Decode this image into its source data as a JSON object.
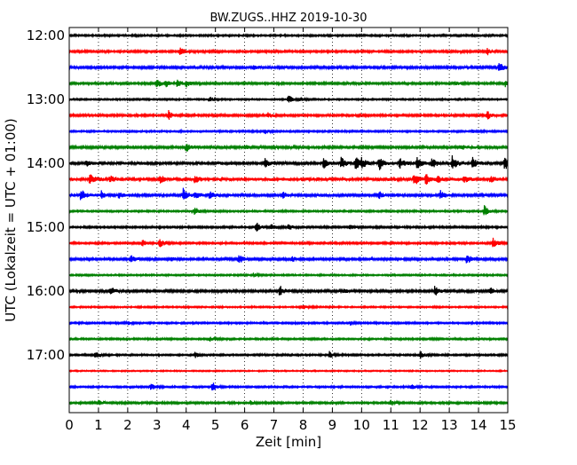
{
  "chart_data": {
    "type": "line",
    "title": "BW.ZUGS..HHZ 2019-10-30",
    "xlabel": "Zeit  [min]",
    "ylabel": "UTC (Lokalzeit = UTC + 01:00)",
    "xlim": [
      0,
      15
    ],
    "x_ticks": [
      "0",
      "1",
      "2",
      "3",
      "4",
      "5",
      "6",
      "7",
      "8",
      "9",
      "10",
      "11",
      "12",
      "13",
      "14",
      "15"
    ],
    "y_ticks": [
      "12:00",
      "13:00",
      "14:00",
      "15:00",
      "16:00",
      "17:00"
    ],
    "grid": "vertical-dotted",
    "trace_interval_minutes": 15,
    "trace_colors": [
      "#000000",
      "#ff0000",
      "#0000ff",
      "#008000"
    ],
    "series": [
      {
        "start": "12:00",
        "amplitude": 0.1,
        "events": []
      },
      {
        "start": "12:15",
        "amplitude": 0.12,
        "events": [
          [
            3.8,
            0.55
          ],
          [
            14.3,
            0.45
          ]
        ]
      },
      {
        "start": "12:30",
        "amplitude": 0.14,
        "events": [
          [
            14.7,
            0.7
          ],
          [
            6.3,
            0.25
          ]
        ]
      },
      {
        "start": "12:45",
        "amplitude": 0.12,
        "events": [
          [
            3.0,
            0.55
          ],
          [
            3.3,
            0.5
          ],
          [
            3.7,
            0.55
          ],
          [
            4.0,
            0.4
          ],
          [
            13.2,
            0.3
          ],
          [
            14.9,
            0.4
          ]
        ]
      },
      {
        "start": "13:00",
        "amplitude": 0.09,
        "events": [
          [
            7.5,
            0.55
          ],
          [
            7.9,
            0.3
          ],
          [
            4.8,
            0.3
          ]
        ]
      },
      {
        "start": "13:15",
        "amplitude": 0.12,
        "events": [
          [
            3.4,
            0.55
          ],
          [
            14.3,
            0.5
          ],
          [
            6.8,
            0.3
          ]
        ]
      },
      {
        "start": "13:30",
        "amplitude": 0.1,
        "events": [
          [
            6.7,
            0.25
          ],
          [
            13.8,
            0.3
          ]
        ]
      },
      {
        "start": "13:45",
        "amplitude": 0.14,
        "events": [
          [
            4.0,
            0.55
          ],
          [
            6.0,
            0.3
          ],
          [
            13.4,
            0.3
          ]
        ]
      },
      {
        "start": "14:00",
        "amplitude": 0.16,
        "events": [
          [
            6.7,
            0.55
          ],
          [
            8.7,
            0.6
          ],
          [
            9.3,
            0.7
          ],
          [
            9.8,
            0.85
          ],
          [
            10.6,
            0.9
          ],
          [
            11.3,
            0.7
          ],
          [
            11.9,
            0.75
          ],
          [
            12.4,
            0.6
          ],
          [
            13.1,
            0.9
          ],
          [
            13.8,
            0.7
          ],
          [
            14.9,
            1.0
          ],
          [
            0.6,
            0.4
          ],
          [
            10.0,
            0.6
          ]
        ]
      },
      {
        "start": "14:15",
        "amplitude": 0.18,
        "events": [
          [
            0.7,
            0.6
          ],
          [
            1.4,
            0.4
          ],
          [
            3.1,
            0.5
          ],
          [
            4.3,
            0.45
          ],
          [
            11.8,
            0.8
          ],
          [
            12.2,
            0.6
          ],
          [
            12.6,
            0.4
          ],
          [
            13.5,
            0.4
          ],
          [
            14.4,
            0.35
          ]
        ]
      },
      {
        "start": "14:30",
        "amplitude": 0.15,
        "events": [
          [
            0.4,
            0.75
          ],
          [
            1.1,
            0.5
          ],
          [
            1.7,
            0.4
          ],
          [
            3.9,
            0.85
          ],
          [
            4.3,
            0.5
          ],
          [
            4.8,
            0.4
          ],
          [
            7.3,
            0.4
          ],
          [
            10.6,
            0.4
          ],
          [
            12.7,
            0.6
          ]
        ]
      },
      {
        "start": "14:45",
        "amplitude": 0.1,
        "events": [
          [
            4.3,
            0.55
          ],
          [
            14.2,
            0.7
          ]
        ]
      },
      {
        "start": "15:00",
        "amplitude": 0.11,
        "events": [
          [
            6.4,
            0.55
          ],
          [
            6.9,
            0.4
          ],
          [
            7.5,
            0.3
          ],
          [
            9.6,
            0.3
          ]
        ]
      },
      {
        "start": "15:15",
        "amplitude": 0.11,
        "events": [
          [
            2.5,
            0.45
          ],
          [
            3.1,
            0.6
          ],
          [
            14.5,
            0.6
          ]
        ]
      },
      {
        "start": "15:30",
        "amplitude": 0.13,
        "events": [
          [
            2.1,
            0.5
          ],
          [
            5.8,
            0.65
          ],
          [
            13.6,
            0.6
          ],
          [
            3.5,
            0.3
          ],
          [
            7.6,
            0.3
          ]
        ]
      },
      {
        "start": "15:45",
        "amplitude": 0.09,
        "events": [
          [
            6.3,
            0.25
          ]
        ]
      },
      {
        "start": "16:00",
        "amplitude": 0.14,
        "events": [
          [
            1.4,
            0.6
          ],
          [
            7.2,
            0.65
          ],
          [
            12.5,
            0.6
          ],
          [
            14.4,
            0.4
          ],
          [
            9.4,
            0.25
          ]
        ]
      },
      {
        "start": "16:15",
        "amplitude": 0.09,
        "events": [
          [
            8.0,
            0.3
          ]
        ]
      },
      {
        "start": "16:30",
        "amplitude": 0.1,
        "events": [
          [
            2.0,
            0.25
          ],
          [
            9.6,
            0.3
          ]
        ]
      },
      {
        "start": "16:45",
        "amplitude": 0.1,
        "events": [
          [
            4.8,
            0.25
          ]
        ]
      },
      {
        "start": "17:00",
        "amplitude": 0.1,
        "events": [
          [
            0.9,
            0.45
          ],
          [
            8.9,
            0.45
          ],
          [
            12.0,
            0.5
          ],
          [
            4.3,
            0.3
          ]
        ]
      },
      {
        "start": "17:15",
        "amplitude": 0.07,
        "events": []
      },
      {
        "start": "17:30",
        "amplitude": 0.1,
        "events": [
          [
            2.8,
            0.4
          ],
          [
            4.9,
            0.6
          ],
          [
            11.7,
            0.35
          ]
        ]
      },
      {
        "start": "17:45",
        "amplitude": 0.11,
        "events": [
          [
            1.0,
            0.35
          ],
          [
            6.2,
            0.25
          ],
          [
            11.0,
            0.3
          ]
        ]
      }
    ]
  }
}
